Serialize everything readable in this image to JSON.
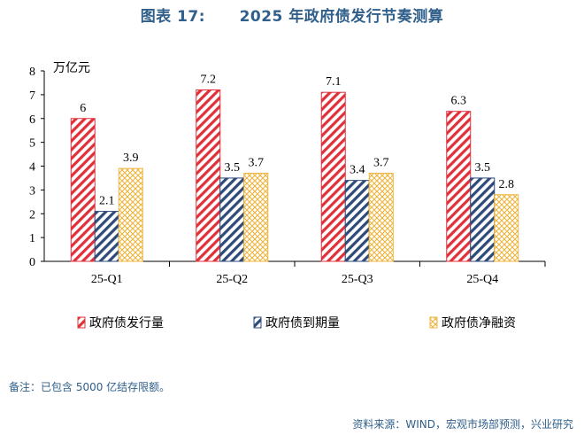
{
  "title": "图表 17:      2025 年政府债发行节奏测算",
  "note": "备注：已包含 5000 亿结存限额。",
  "source": "资料来源：WIND，宏观市场部预测，兴业研究",
  "colors": {
    "issuance": "#e0303a",
    "maturity": "#2e4a78",
    "net_financing": "#f0b43c",
    "title": "#2f5f8a"
  },
  "chart_data": {
    "type": "bar",
    "title": "2025 年政府债发行节奏测算",
    "unit_label": "万亿元",
    "categories": [
      "25-Q1",
      "25-Q2",
      "25-Q3",
      "25-Q4"
    ],
    "series": [
      {
        "name": "政府债发行量",
        "values": [
          6,
          7.2,
          7.1,
          6.3
        ],
        "labels": [
          "6",
          "7.2",
          "7.1",
          "6.3"
        ],
        "pattern": "diag-red"
      },
      {
        "name": "政府债到期量",
        "values": [
          2.1,
          3.5,
          3.4,
          3.5
        ],
        "labels": [
          "2.1",
          "3.5",
          "3.4",
          "3.5"
        ],
        "pattern": "diag-navy"
      },
      {
        "name": "政府债净融资",
        "values": [
          3.9,
          3.7,
          3.7,
          2.8
        ],
        "labels": [
          "3.9",
          "3.7",
          "3.7",
          "2.8"
        ],
        "pattern": "cross-gold"
      }
    ],
    "yticks": [
      0,
      1,
      2,
      3,
      4,
      5,
      6,
      7,
      8
    ],
    "ylim": [
      0,
      8
    ],
    "legend_position": "bottom",
    "grid": false
  }
}
